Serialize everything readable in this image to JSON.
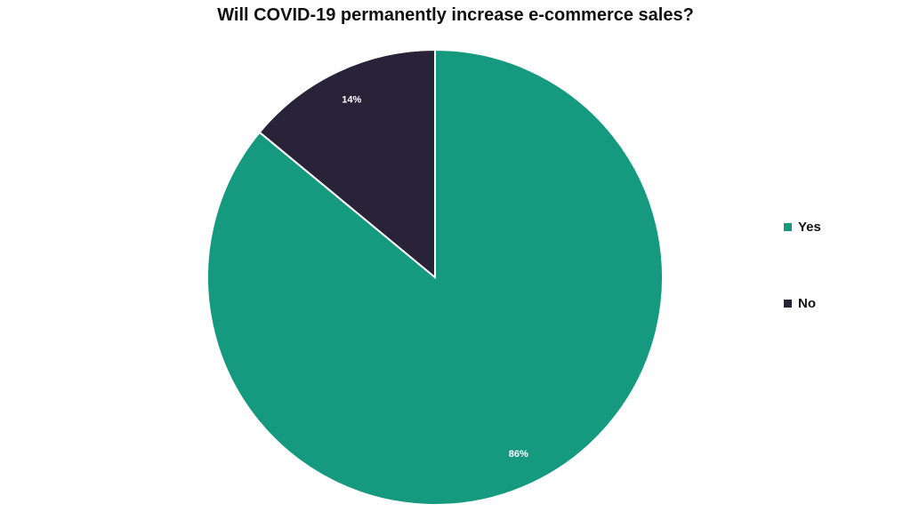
{
  "chart_data": {
    "type": "pie",
    "title": "Will COVID-19 permanently increase e-commerce sales?",
    "series": [
      {
        "name": "Yes",
        "value": 86,
        "label": "86%",
        "color": "#159a7f"
      },
      {
        "name": "No",
        "value": 14,
        "label": "14%",
        "color": "#29233a"
      }
    ],
    "start": "12 o'clock",
    "direction": "clockwise",
    "legend_position": "right"
  }
}
